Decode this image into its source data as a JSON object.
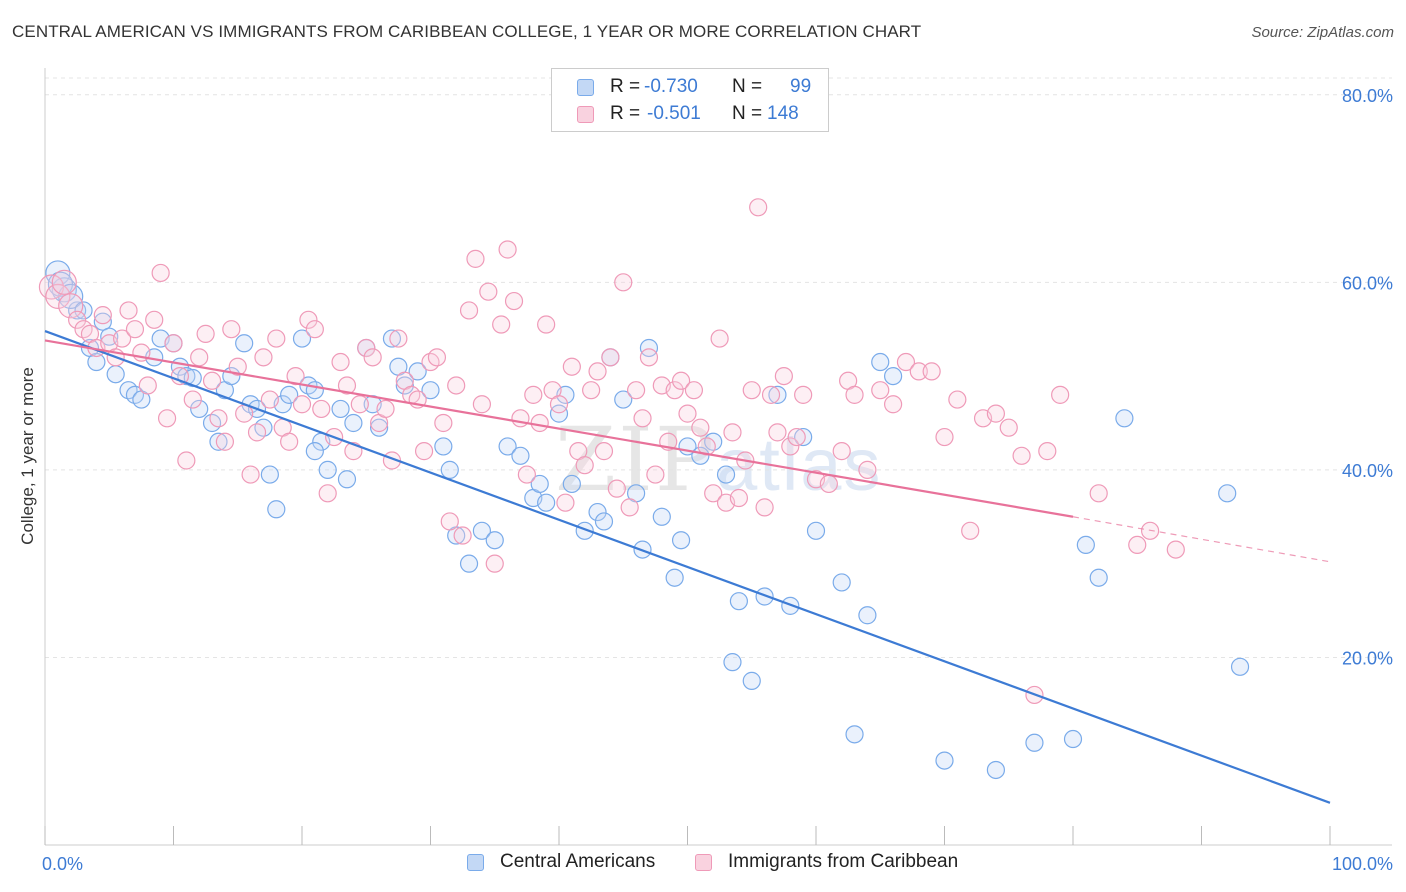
{
  "title": "CENTRAL AMERICAN VS IMMIGRANTS FROM CARIBBEAN COLLEGE, 1 YEAR OR MORE CORRELATION CHART",
  "source": "Source: ZipAtlas.com",
  "watermark": {
    "zip": "ZIP",
    "atlas": "atlas"
  },
  "legend": {
    "rows": [
      {
        "r_label": "R =",
        "r_value": "-0.730",
        "n_label": "N =",
        "n_value": "99",
        "color": "#7aabea",
        "fill": "#c3d8f5"
      },
      {
        "r_label": "R =",
        "r_value": "-0.501",
        "n_label": "N =",
        "n_value": "148",
        "color": "#ef9ab8",
        "fill": "#f9d2df"
      }
    ]
  },
  "bottom_legend": [
    {
      "label": "Central Americans",
      "color": "#7aabea",
      "fill": "#c3d8f5"
    },
    {
      "label": "Immigrants from Caribbean",
      "color": "#ef9ab8",
      "fill": "#f9d2df"
    }
  ],
  "chart_data": {
    "type": "scatter",
    "title": "CENTRAL AMERICAN VS IMMIGRANTS FROM CARIBBEAN COLLEGE, 1 YEAR OR MORE CORRELATION CHART",
    "xlabel": "",
    "ylabel": "College, 1 year or more",
    "xlim": [
      0,
      100
    ],
    "ylim": [
      0,
      82
    ],
    "x_tick_labels": [
      "0.0%",
      "100.0%"
    ],
    "y_ticks": [
      20,
      40,
      60,
      80
    ],
    "y_tick_labels": [
      "20.0%",
      "40.0%",
      "60.0%",
      "80.0%"
    ],
    "grid": true,
    "legend_position": "top-center",
    "series": [
      {
        "name": "Central Americans",
        "color": "#3d7bd4",
        "point_color": "#7aabea",
        "trend": {
          "x": [
            0,
            100
          ],
          "y": [
            54.8,
            4.5
          ]
        },
        "points": [
          [
            1.0,
            61.0
          ],
          [
            1.5,
            59.2
          ],
          [
            2.5,
            57.0
          ],
          [
            3.5,
            53.0
          ],
          [
            4.0,
            51.5
          ],
          [
            4.5,
            55.8
          ],
          [
            5.0,
            54.2
          ],
          [
            5.5,
            50.2
          ],
          [
            6.5,
            48.5
          ],
          [
            7.0,
            48.0
          ],
          [
            7.5,
            47.5
          ],
          [
            8.5,
            52.0
          ],
          [
            9.0,
            54.0
          ],
          [
            10.0,
            53.5
          ],
          [
            10.5,
            51.0
          ],
          [
            11.0,
            50.0
          ],
          [
            11.5,
            49.8
          ],
          [
            12.0,
            46.5
          ],
          [
            13.0,
            45.0
          ],
          [
            13.5,
            43.0
          ],
          [
            14.0,
            48.5
          ],
          [
            14.5,
            50.0
          ],
          [
            15.5,
            53.5
          ],
          [
            16.0,
            47.0
          ],
          [
            16.5,
            46.5
          ],
          [
            17.0,
            44.5
          ],
          [
            17.5,
            39.5
          ],
          [
            18.0,
            35.8
          ],
          [
            18.5,
            47.0
          ],
          [
            19.0,
            48.0
          ],
          [
            20.0,
            54.0
          ],
          [
            20.5,
            49.0
          ],
          [
            21.0,
            48.5
          ],
          [
            21.5,
            43.0
          ],
          [
            22.0,
            40.0
          ],
          [
            23.0,
            46.5
          ],
          [
            23.5,
            39.0
          ],
          [
            24.0,
            45.0
          ],
          [
            25.0,
            53.0
          ],
          [
            25.5,
            47.0
          ],
          [
            26.0,
            44.5
          ],
          [
            27.0,
            54.0
          ],
          [
            27.5,
            51.0
          ],
          [
            28.0,
            49.0
          ],
          [
            29.0,
            50.5
          ],
          [
            30.0,
            48.5
          ],
          [
            31.0,
            42.5
          ],
          [
            31.5,
            40.0
          ],
          [
            32.0,
            33.0
          ],
          [
            33.0,
            30.0
          ],
          [
            34.0,
            33.5
          ],
          [
            35.0,
            32.5
          ],
          [
            36.0,
            42.5
          ],
          [
            37.0,
            41.5
          ],
          [
            38.0,
            37.0
          ],
          [
            38.5,
            38.5
          ],
          [
            39.0,
            36.5
          ],
          [
            40.0,
            46.0
          ],
          [
            40.5,
            48.0
          ],
          [
            41.0,
            38.5
          ],
          [
            42.0,
            33.5
          ],
          [
            43.0,
            35.5
          ],
          [
            43.5,
            34.5
          ],
          [
            44.0,
            52.0
          ],
          [
            45.0,
            47.5
          ],
          [
            46.0,
            37.5
          ],
          [
            46.5,
            31.5
          ],
          [
            47.0,
            53.0
          ],
          [
            48.0,
            35.0
          ],
          [
            49.0,
            28.5
          ],
          [
            49.5,
            32.5
          ],
          [
            50.0,
            42.5
          ],
          [
            51.0,
            41.5
          ],
          [
            52.0,
            43.0
          ],
          [
            53.0,
            39.5
          ],
          [
            53.5,
            19.5
          ],
          [
            54.0,
            26.0
          ],
          [
            55.0,
            17.5
          ],
          [
            56.0,
            26.5
          ],
          [
            57.0,
            48.0
          ],
          [
            58.0,
            25.5
          ],
          [
            59.0,
            43.5
          ],
          [
            60.0,
            33.5
          ],
          [
            62.0,
            28.0
          ],
          [
            63.0,
            11.8
          ],
          [
            64.0,
            24.5
          ],
          [
            65.0,
            51.5
          ],
          [
            66.0,
            50.0
          ],
          [
            70.0,
            9.0
          ],
          [
            74.0,
            8.0
          ],
          [
            77.0,
            10.9
          ],
          [
            80.0,
            11.3
          ],
          [
            81.0,
            32.0
          ],
          [
            82.0,
            28.5
          ],
          [
            84.0,
            45.5
          ],
          [
            92.0,
            37.5
          ],
          [
            93.0,
            19.0
          ],
          [
            1.2,
            59.8
          ],
          [
            2.0,
            58.5
          ],
          [
            3.0,
            57.0
          ],
          [
            21.0,
            42.0
          ]
        ]
      },
      {
        "name": "Immigrants from Caribbean",
        "color": "#e8729a",
        "point_color": "#ef9ab8",
        "trend": {
          "x": [
            0,
            80
          ],
          "y": [
            53.8,
            35.0
          ]
        },
        "trend_dashed": {
          "x": [
            80,
            100
          ],
          "y": [
            35.0,
            30.2
          ]
        },
        "points": [
          [
            0.5,
            59.5
          ],
          [
            1.0,
            58.5
          ],
          [
            1.5,
            60.0
          ],
          [
            2.0,
            57.5
          ],
          [
            2.5,
            56.0
          ],
          [
            3.0,
            55.0
          ],
          [
            3.5,
            54.5
          ],
          [
            4.0,
            53.0
          ],
          [
            4.5,
            56.5
          ],
          [
            5.0,
            53.5
          ],
          [
            5.5,
            52.0
          ],
          [
            6.0,
            54.0
          ],
          [
            6.5,
            57.0
          ],
          [
            7.0,
            55.0
          ],
          [
            7.5,
            52.5
          ],
          [
            8.0,
            49.0
          ],
          [
            8.5,
            56.0
          ],
          [
            9.0,
            61.0
          ],
          [
            9.5,
            45.5
          ],
          [
            10.0,
            53.5
          ],
          [
            10.5,
            50.0
          ],
          [
            11.0,
            41.0
          ],
          [
            11.5,
            47.5
          ],
          [
            12.0,
            52.0
          ],
          [
            12.5,
            54.5
          ],
          [
            13.0,
            49.5
          ],
          [
            13.5,
            45.5
          ],
          [
            14.0,
            43.0
          ],
          [
            14.5,
            55.0
          ],
          [
            15.0,
            51.0
          ],
          [
            15.5,
            46.0
          ],
          [
            16.0,
            39.5
          ],
          [
            16.5,
            44.0
          ],
          [
            17.0,
            52.0
          ],
          [
            17.5,
            47.5
          ],
          [
            18.0,
            54.0
          ],
          [
            18.5,
            44.5
          ],
          [
            19.0,
            43.0
          ],
          [
            19.5,
            50.0
          ],
          [
            20.0,
            47.0
          ],
          [
            20.5,
            56.0
          ],
          [
            21.0,
            55.0
          ],
          [
            21.5,
            46.5
          ],
          [
            22.0,
            37.5
          ],
          [
            22.5,
            43.5
          ],
          [
            23.0,
            51.5
          ],
          [
            23.5,
            49.0
          ],
          [
            24.0,
            42.0
          ],
          [
            24.5,
            47.0
          ],
          [
            25.0,
            53.0
          ],
          [
            25.5,
            52.0
          ],
          [
            26.0,
            45.0
          ],
          [
            26.5,
            46.5
          ],
          [
            27.0,
            41.0
          ],
          [
            27.5,
            54.0
          ],
          [
            28.0,
            49.5
          ],
          [
            28.5,
            48.0
          ],
          [
            29.0,
            47.5
          ],
          [
            29.5,
            42.0
          ],
          [
            30.0,
            51.5
          ],
          [
            30.5,
            52.0
          ],
          [
            31.0,
            45.0
          ],
          [
            31.5,
            34.5
          ],
          [
            32.0,
            49.0
          ],
          [
            32.5,
            33.0
          ],
          [
            33.0,
            57.0
          ],
          [
            33.5,
            62.5
          ],
          [
            34.0,
            47.0
          ],
          [
            34.5,
            59.0
          ],
          [
            35.0,
            30.0
          ],
          [
            35.5,
            55.5
          ],
          [
            36.0,
            63.5
          ],
          [
            36.5,
            58.0
          ],
          [
            37.0,
            45.5
          ],
          [
            37.5,
            39.5
          ],
          [
            38.0,
            48.0
          ],
          [
            38.5,
            45.0
          ],
          [
            39.0,
            55.5
          ],
          [
            39.5,
            48.5
          ],
          [
            40.0,
            47.0
          ],
          [
            40.5,
            36.5
          ],
          [
            41.0,
            51.0
          ],
          [
            41.5,
            42.0
          ],
          [
            42.0,
            40.5
          ],
          [
            42.5,
            48.5
          ],
          [
            43.0,
            50.5
          ],
          [
            43.5,
            42.0
          ],
          [
            44.0,
            52.0
          ],
          [
            44.5,
            38.0
          ],
          [
            45.0,
            60.0
          ],
          [
            45.5,
            36.0
          ],
          [
            46.0,
            48.5
          ],
          [
            46.5,
            45.5
          ],
          [
            47.0,
            52.0
          ],
          [
            47.5,
            39.5
          ],
          [
            48.0,
            49.0
          ],
          [
            48.5,
            43.0
          ],
          [
            49.0,
            48.5
          ],
          [
            49.5,
            49.5
          ],
          [
            50.0,
            46.0
          ],
          [
            50.5,
            48.5
          ],
          [
            51.0,
            44.5
          ],
          [
            51.5,
            42.5
          ],
          [
            52.0,
            37.5
          ],
          [
            52.5,
            54.0
          ],
          [
            53.0,
            36.5
          ],
          [
            53.5,
            44.0
          ],
          [
            54.0,
            37.0
          ],
          [
            54.5,
            41.0
          ],
          [
            55.0,
            48.5
          ],
          [
            55.5,
            68.0
          ],
          [
            56.0,
            36.0
          ],
          [
            56.5,
            48.0
          ],
          [
            57.0,
            44.0
          ],
          [
            57.5,
            50.0
          ],
          [
            58.0,
            42.5
          ],
          [
            58.5,
            43.5
          ],
          [
            59.0,
            48.0
          ],
          [
            60.0,
            39.0
          ],
          [
            61.0,
            38.5
          ],
          [
            62.0,
            42.0
          ],
          [
            62.5,
            49.5
          ],
          [
            63.0,
            48.0
          ],
          [
            64.0,
            40.0
          ],
          [
            65.0,
            48.5
          ],
          [
            66.0,
            47.0
          ],
          [
            67.0,
            51.5
          ],
          [
            68.0,
            50.5
          ],
          [
            69.0,
            50.5
          ],
          [
            70.0,
            43.5
          ],
          [
            71.0,
            47.5
          ],
          [
            72.0,
            33.5
          ],
          [
            73.0,
            45.5
          ],
          [
            74.0,
            46.0
          ],
          [
            75.0,
            44.5
          ],
          [
            76.0,
            41.5
          ],
          [
            77.0,
            16.0
          ],
          [
            78.0,
            42.0
          ],
          [
            79.0,
            48.0
          ],
          [
            82.0,
            37.5
          ],
          [
            85.0,
            32.0
          ],
          [
            86.0,
            33.5
          ],
          [
            88.0,
            31.5
          ]
        ]
      }
    ]
  }
}
